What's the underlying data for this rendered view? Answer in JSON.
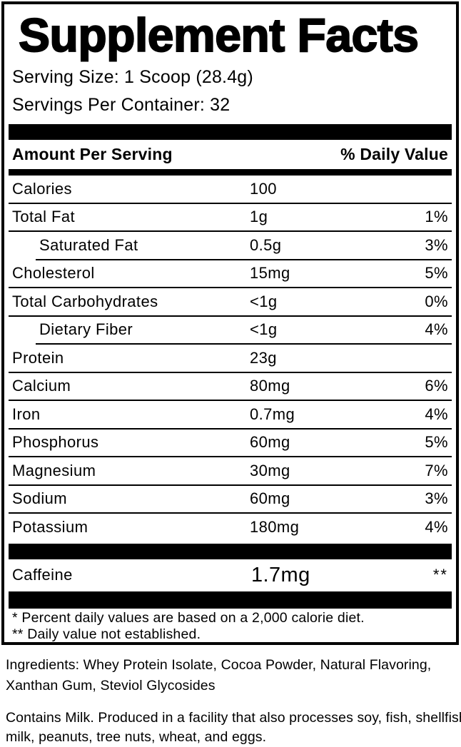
{
  "title": "Supplement Facts",
  "serving": {
    "size": "Serving Size: 1 Scoop (28.4g)",
    "per_container": "Servings Per Container: 32"
  },
  "columns": {
    "amount_header": "Amount Per Serving",
    "dv_header": "% Daily Value"
  },
  "rows": [
    {
      "name": "Calories",
      "amount": "100",
      "dv": ""
    },
    {
      "name": "Total Fat",
      "amount": "1g",
      "dv": "1%"
    },
    {
      "name": "Saturated Fat",
      "amount": "0.5g",
      "dv": "3%"
    },
    {
      "name": "Cholesterol",
      "amount": "15mg",
      "dv": "5%"
    },
    {
      "name": "Total Carbohydrates",
      "amount": "<1g",
      "dv": "0%"
    },
    {
      "name": "Dietary Fiber",
      "amount": "<1g",
      "dv": "4%"
    },
    {
      "name": "Protein",
      "amount": "23g",
      "dv": ""
    },
    {
      "name": "Calcium",
      "amount": "80mg",
      "dv": "6%"
    },
    {
      "name": "Iron",
      "amount": "0.7mg",
      "dv": "4%"
    },
    {
      "name": "Phosphorus",
      "amount": "60mg",
      "dv": "5%"
    },
    {
      "name": "Magnesium",
      "amount": "30mg",
      "dv": "7%"
    },
    {
      "name": "Sodium",
      "amount": "60mg",
      "dv": "3%"
    },
    {
      "name": "Potassium",
      "amount": "180mg",
      "dv": "4%"
    }
  ],
  "caffeine": {
    "name": "Caffeine",
    "amount": "1.7mg",
    "dv": "**"
  },
  "footnotes": {
    "line1": "* Percent daily values are based on a 2,000 calorie diet.",
    "line2": "** Daily value not established."
  },
  "ingredients": {
    "line1": "Ingredients: Whey Protein Isolate, Cocoa Powder, Natural Flavoring,",
    "line2": "Xanthan Gum, Steviol Glycosides"
  },
  "allergen": {
    "line1": "Contains Milk. Produced in a facility that also processes soy, fish, shellfish,",
    "line2": "milk, peanuts, tree nuts, wheat, and eggs."
  },
  "colors": {
    "text": "#000000",
    "background": "#ffffff",
    "bar": "#000000"
  }
}
